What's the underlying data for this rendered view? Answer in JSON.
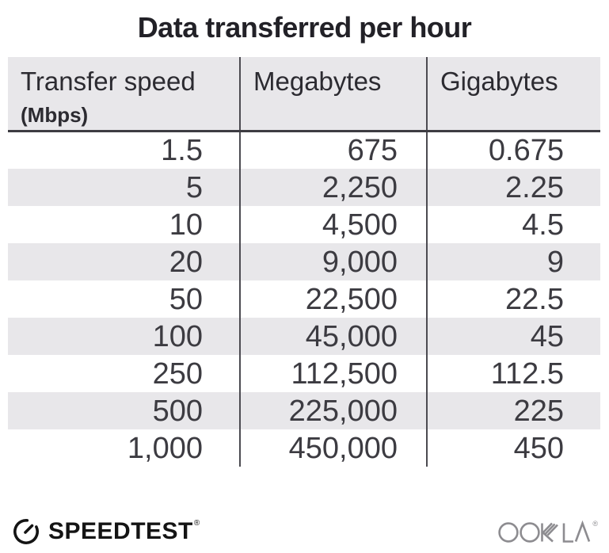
{
  "title": "Data transferred per hour",
  "chart_data": {
    "type": "table",
    "title": "Data transferred per hour",
    "columns": [
      "Transfer speed (Mbps)",
      "Megabytes",
      "Gigabytes"
    ],
    "rows": [
      [
        1.5,
        675,
        0.675
      ],
      [
        5,
        2250,
        2.25
      ],
      [
        10,
        4500,
        4.5
      ],
      [
        20,
        9000,
        9
      ],
      [
        50,
        22500,
        22.5
      ],
      [
        100,
        45000,
        45
      ],
      [
        250,
        112500,
        112.5
      ],
      [
        500,
        225000,
        225
      ],
      [
        1000,
        450000,
        450
      ]
    ],
    "layout": {
      "striped_rows": true,
      "column_dividers": true,
      "header_background": "#e8e7ea"
    }
  },
  "table": {
    "columns": [
      {
        "label": "Transfer speed",
        "sublabel": "(Mbps)"
      },
      {
        "label": "Megabytes",
        "sublabel": ""
      },
      {
        "label": "Gigabytes",
        "sublabel": ""
      }
    ],
    "rows": [
      [
        "1.5",
        "675",
        "0.675"
      ],
      [
        "5",
        "2,250",
        "2.25"
      ],
      [
        "10",
        "4,500",
        "4.5"
      ],
      [
        "20",
        "9,000",
        "9"
      ],
      [
        "50",
        "22,500",
        "22.5"
      ],
      [
        "100",
        "45,000",
        "45"
      ],
      [
        "250",
        "112,500",
        "112.5"
      ],
      [
        "500",
        "225,000",
        "225"
      ],
      [
        "1,000",
        "450,000",
        "450"
      ]
    ]
  },
  "footer": {
    "speedtest_label": "SPEEDTEST",
    "speedtest_trademark": "®",
    "ookla_label": "OOKLA",
    "ookla_trademark": "®"
  },
  "colors": {
    "stripe_bg": "#e8e7ea",
    "header_bg": "#e8e7ea",
    "header_border": "#3d3c42",
    "column_divider": "#4c4b51",
    "title_text": "#222127",
    "header_text": "#2c2b31",
    "cell_text": "#3c3b41",
    "speedtest_black": "#141414",
    "ookla_gray": "#8d8c90"
  }
}
